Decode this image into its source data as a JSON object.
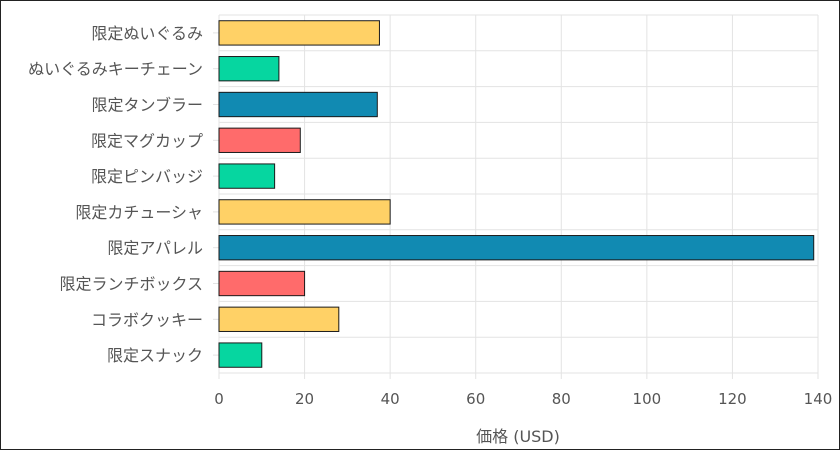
{
  "chart_data": {
    "type": "bar",
    "orientation": "horizontal",
    "categories": [
      "限定ぬいぐるみ",
      "ぬいぐるみキーチェーン",
      "限定タンブラー",
      "限定マグカップ",
      "限定ピンバッジ",
      "限定カチューシャ",
      "限定アパレル",
      "限定ランチボックス",
      "コラボクッキー",
      "限定スナック"
    ],
    "values": [
      37.5,
      14,
      37,
      19,
      13,
      40,
      139,
      20,
      28,
      10
    ],
    "colors": [
      "#FFD166",
      "#06D6A0",
      "#118AB2",
      "#FF6B6B",
      "#06D6A0",
      "#FFD166",
      "#118AB2",
      "#FF6B6B",
      "#FFD166",
      "#06D6A0"
    ],
    "title": "",
    "xlabel": "価格 (USD)",
    "ylabel": "",
    "xlim": [
      0,
      140
    ],
    "xticks": [
      0,
      20,
      40,
      60,
      80,
      100,
      120,
      140
    ],
    "grid": true
  }
}
